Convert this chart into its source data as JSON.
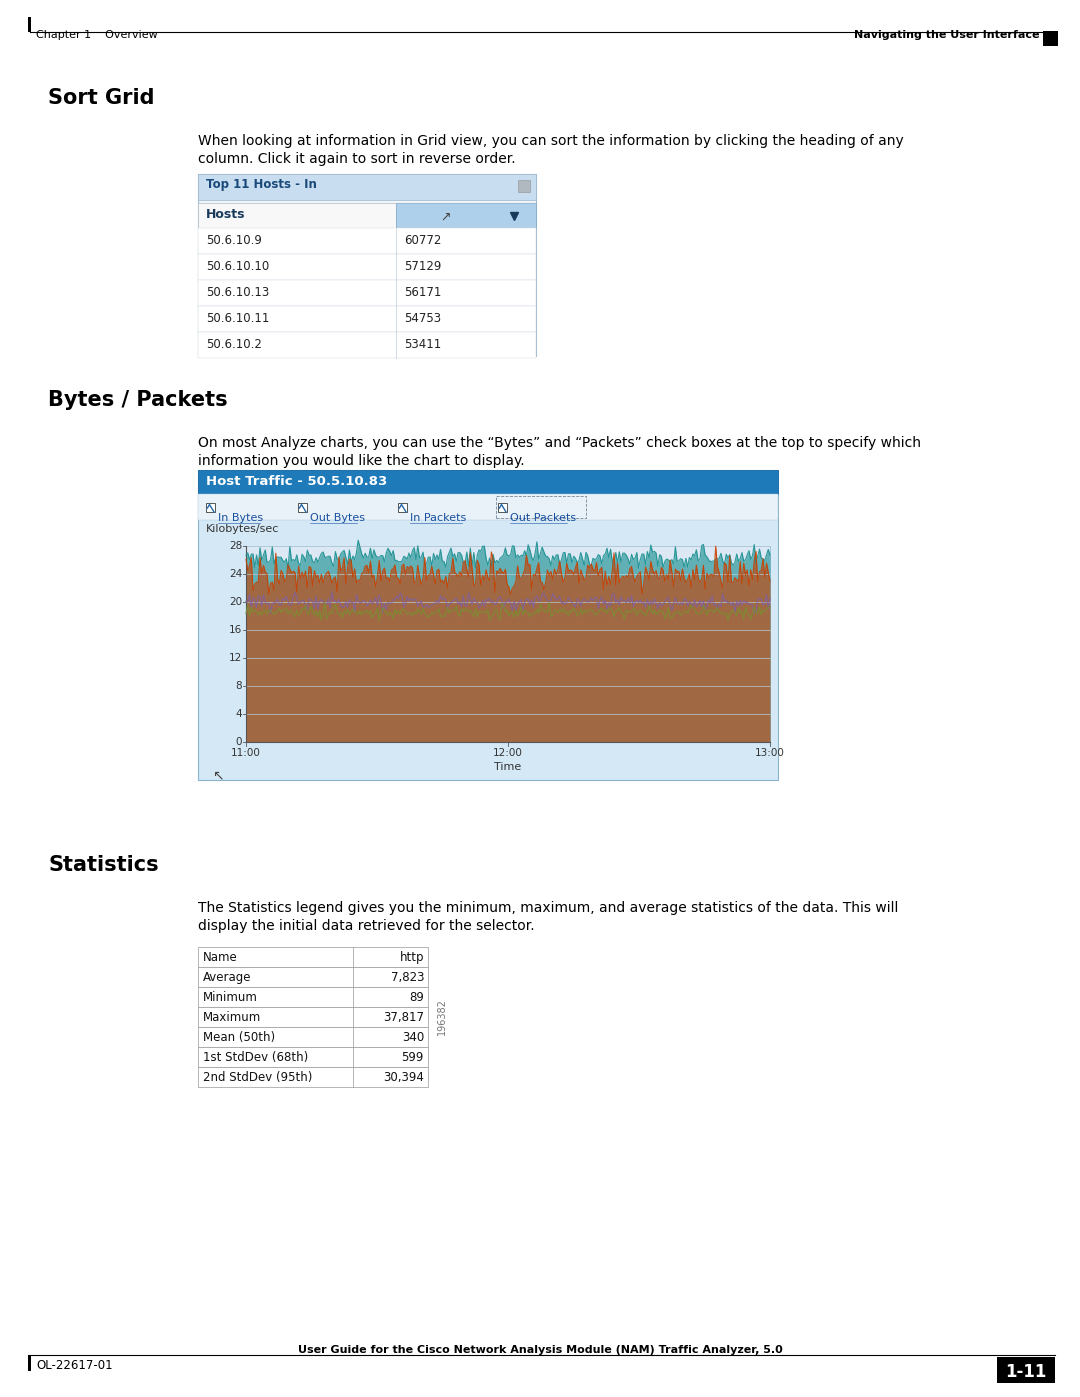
{
  "page_bg": "#ffffff",
  "header_left": "Chapter 1    Overview",
  "header_right": "Navigating the User Interface",
  "footer_left": "OL-22617-01",
  "footer_center": "User Guide for the Cisco Network Analysis Module (NAM) Traffic Analyzer, 5.0",
  "footer_page": "1-11",
  "section1_title": "Sort Grid",
  "section1_body1": "When looking at information in Grid view, you can sort the information by clicking the heading of any",
  "section1_body2": "column. Click it again to sort in reverse order.",
  "grid_title": "Top 11 Hosts - In",
  "grid_col1_header": "Hosts",
  "grid_rows": [
    [
      "50.6.10.9",
      "60772"
    ],
    [
      "50.6.10.10",
      "57129"
    ],
    [
      "50.6.10.13",
      "56171"
    ],
    [
      "50.6.10.11",
      "54753"
    ],
    [
      "50.6.10.2",
      "53411"
    ]
  ],
  "section2_title": "Bytes / Packets",
  "section2_body1": "On most Analyze charts, you can use the “Bytes” and “Packets” check boxes at the top to specify which",
  "section2_body2": "information you would like the chart to display.",
  "chart_title": "Host Traffic - 50.5.10.83",
  "chart_checkboxes": [
    "In Bytes",
    "Out Bytes",
    "In Packets",
    "Out Packets"
  ],
  "chart_ylabel": "Kilobytes/sec",
  "chart_xlabel": "Time",
  "chart_yticks": [
    0,
    4,
    8,
    12,
    16,
    20,
    24,
    28
  ],
  "chart_xticks": [
    "11:00",
    "12:00",
    "13:00"
  ],
  "chart_title_bg": "#1e7ab8",
  "chart_title_fg": "#ffffff",
  "chart_bg": "#d8e8f4",
  "chart_border": "#7ab0d0",
  "section3_title": "Statistics",
  "section3_body1": "The Statistics legend gives you the minimum, maximum, and average statistics of the data. This will",
  "section3_body2": "display the initial data retrieved for the selector.",
  "stats_rows": [
    [
      "Name",
      "http"
    ],
    [
      "Average",
      "7,823"
    ],
    [
      "Minimum",
      "89"
    ],
    [
      "Maximum",
      "37,817"
    ],
    [
      "Mean (50th)",
      "340"
    ],
    [
      "1st StdDev (68th)",
      "599"
    ],
    [
      "2nd StdDev (95th)",
      "30,394"
    ]
  ],
  "stats_watermark": "196382",
  "series_colors": [
    "#1a9090",
    "#c84000",
    "#8060a0",
    "#789030"
  ],
  "series_means": [
    26.5,
    24.0,
    20.0,
    18.5
  ],
  "series_stds": [
    0.8,
    1.2,
    0.6,
    0.5
  ]
}
